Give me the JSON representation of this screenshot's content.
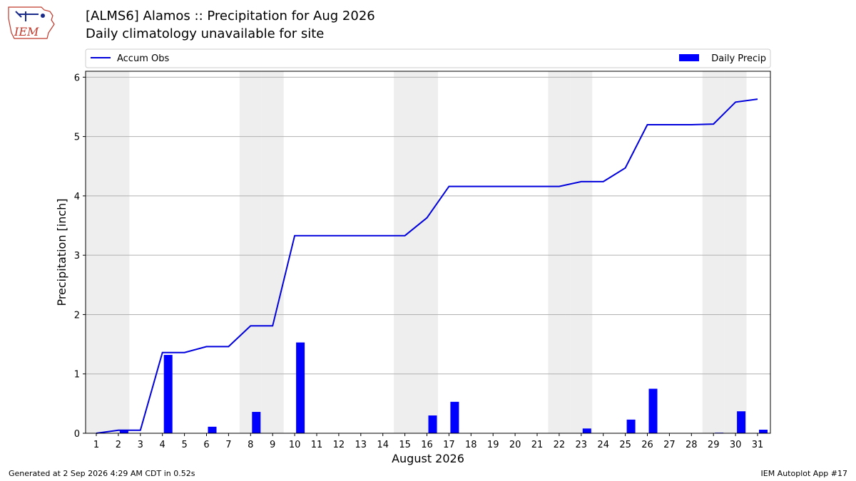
{
  "header": {
    "logo_text": "IEM",
    "title": "[ALMS6] Alamos :: Precipitation for Aug 2026",
    "subtitle": "Daily climatology unavailable for site"
  },
  "footer": {
    "left": "Generated at 2 Sep 2026 4:29 AM CDT in 0.52s",
    "right": "IEM Autoplot App #17"
  },
  "colors": {
    "accum_line": "#0000dd",
    "daily_bar": "#0000ff",
    "weekend_shade": "#eeeeee",
    "grid": "#b0b0b0"
  },
  "chart_data": {
    "type": "bar",
    "xlabel": "August 2026",
    "ylabel": "Precipitation [inch]",
    "ylim": [
      0,
      6.1
    ],
    "yticks": [
      0,
      1,
      2,
      3,
      4,
      5,
      6
    ],
    "grid": "horizontal",
    "legend_placement": "top",
    "days": [
      1,
      2,
      3,
      4,
      5,
      6,
      7,
      8,
      9,
      10,
      11,
      12,
      13,
      14,
      15,
      16,
      17,
      18,
      19,
      20,
      21,
      22,
      23,
      24,
      25,
      26,
      27,
      28,
      29,
      30,
      31
    ],
    "x_tick_labels": [
      "1",
      "2",
      "3",
      "4",
      "5",
      "6",
      "7",
      "8",
      "9",
      "10",
      "11",
      "12",
      "13",
      "14",
      "15",
      "16",
      "17",
      "18",
      "19",
      "20",
      "21",
      "22",
      "23",
      "24",
      "25",
      "26",
      "27",
      "28",
      "29",
      "30",
      "31"
    ],
    "weekend_days": [
      1,
      2,
      8,
      9,
      15,
      16,
      22,
      23,
      29,
      30
    ],
    "series": [
      {
        "name": "Daily Precip",
        "kind": "bar",
        "values": [
          0.0,
          0.05,
          0.0,
          1.32,
          0.0,
          0.11,
          0.0,
          0.36,
          0.0,
          1.53,
          0.0,
          0.0,
          0.0,
          0.0,
          0.0,
          0.3,
          0.53,
          0.0,
          0.0,
          0.0,
          0.0,
          0.0,
          0.08,
          0.0,
          0.23,
          0.75,
          0.0,
          0.0,
          0.01,
          0.37,
          0.06
        ]
      },
      {
        "name": "Accum Obs",
        "kind": "line",
        "values": [
          0.0,
          0.05,
          0.05,
          1.36,
          1.36,
          1.46,
          1.46,
          1.81,
          1.81,
          3.33,
          3.33,
          3.33,
          3.33,
          3.33,
          3.33,
          3.63,
          4.16,
          4.16,
          4.16,
          4.16,
          4.16,
          4.16,
          4.24,
          4.24,
          4.47,
          5.2,
          5.2,
          5.2,
          5.21,
          5.58,
          5.63
        ]
      }
    ]
  }
}
